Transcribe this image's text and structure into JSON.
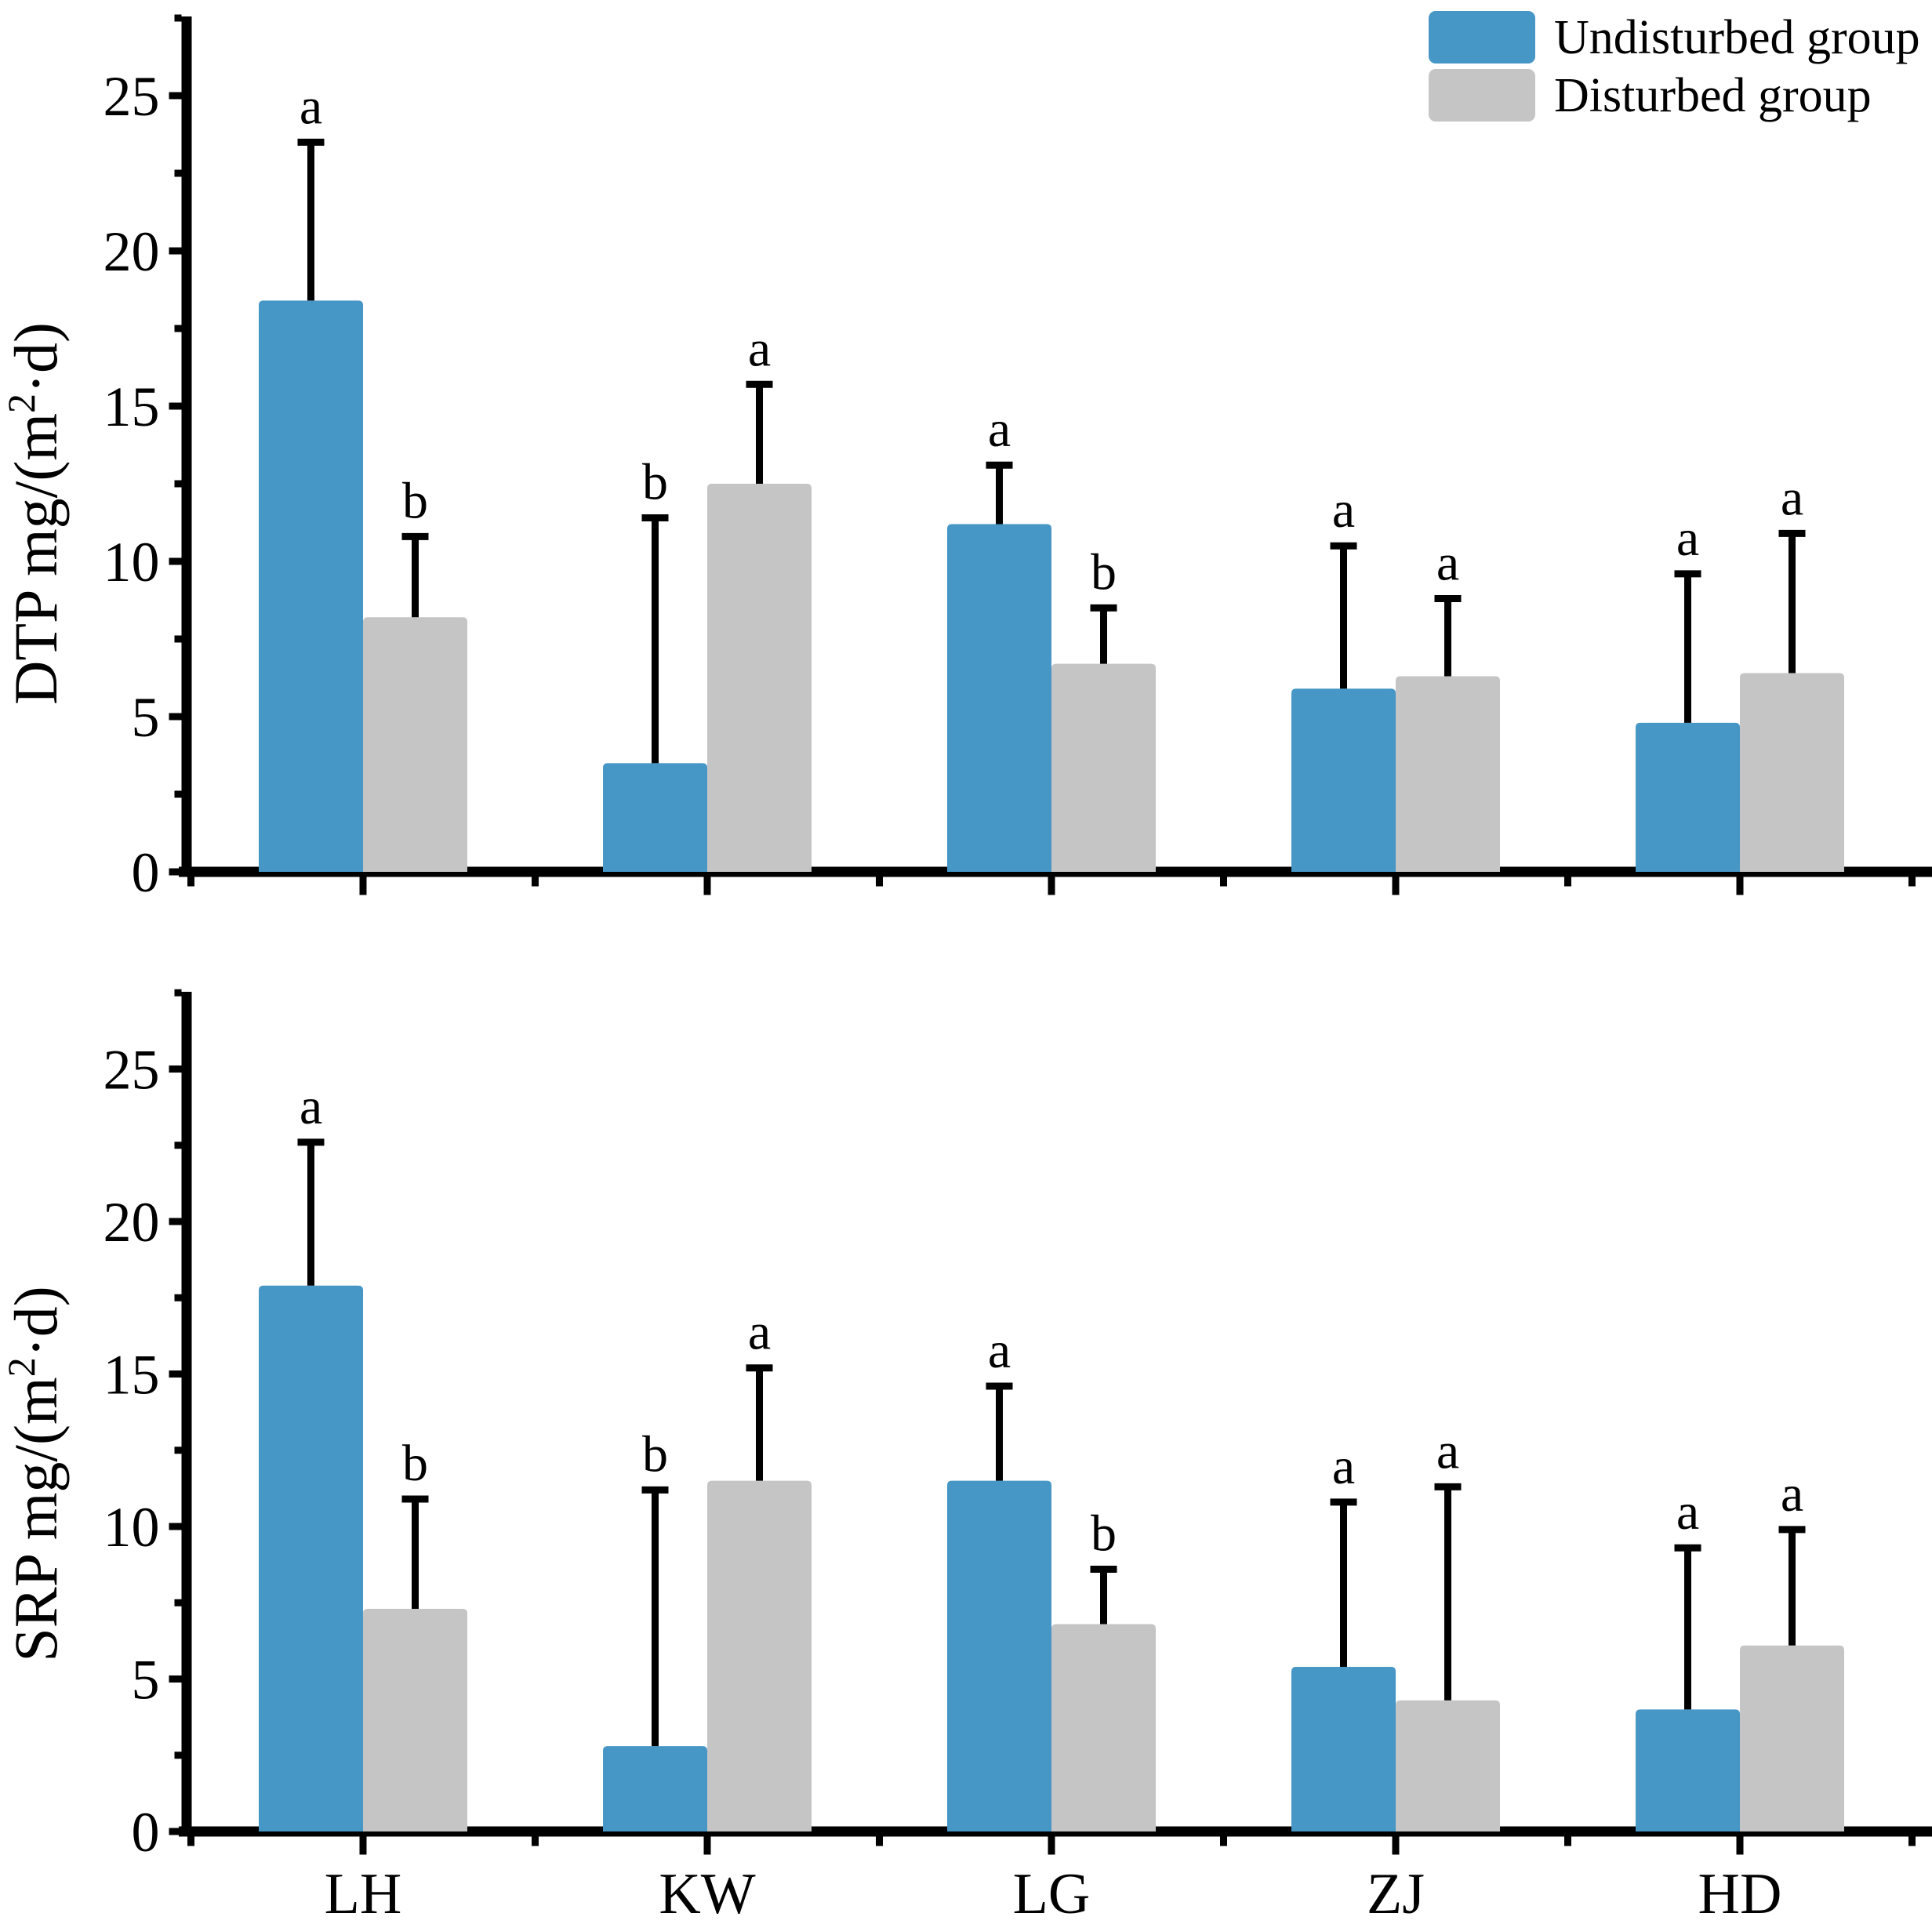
{
  "legend": {
    "items": [
      {
        "label": "Undisturbed group",
        "color": "#4696C6"
      },
      {
        "label": "Disturbed group",
        "color": "#C5C5C5"
      }
    ]
  },
  "chart_data": [
    {
      "type": "bar",
      "panel_id": "DTP",
      "ylabel": {
        "prefix": "DTP mg/(m",
        "superscript": "2",
        "suffix": "·d)"
      },
      "categories": [
        "LH",
        "KW",
        "LG",
        "ZJ",
        "HD"
      ],
      "series": [
        {
          "name": "Undisturbed group",
          "color": "#4696C6",
          "values": [
            18.4,
            3.5,
            11.2,
            5.9,
            4.8
          ],
          "errors_plus": [
            5.1,
            7.9,
            1.9,
            4.6,
            4.8
          ],
          "sig_letters": [
            "a",
            "b",
            "a",
            "a",
            "a"
          ]
        },
        {
          "name": "Disturbed group",
          "color": "#C5C5C5",
          "values": [
            8.2,
            12.5,
            6.7,
            6.3,
            6.4
          ],
          "errors_plus": [
            2.6,
            3.2,
            1.8,
            2.5,
            4.5
          ],
          "sig_letters": [
            "b",
            "a",
            "b",
            "a",
            "a"
          ]
        }
      ],
      "yticks": [
        0,
        5,
        10,
        15,
        20,
        25
      ],
      "ylim": [
        0,
        27.5
      ],
      "grid": false,
      "legend_position": "top-right",
      "show_category_labels": false
    },
    {
      "type": "bar",
      "panel_id": "SRP",
      "ylabel": {
        "prefix": "SRP mg/(m",
        "superscript": "2",
        "suffix": "·d)"
      },
      "categories": [
        "LH",
        "KW",
        "LG",
        "ZJ",
        "HD"
      ],
      "series": [
        {
          "name": "Undisturbed group",
          "color": "#4696C6",
          "values": [
            17.9,
            2.8,
            11.5,
            5.4,
            4.0
          ],
          "errors_plus": [
            4.7,
            8.4,
            3.1,
            5.4,
            5.3
          ],
          "sig_letters": [
            "a",
            "b",
            "a",
            "a",
            "a"
          ]
        },
        {
          "name": "Disturbed group",
          "color": "#C5C5C5",
          "values": [
            7.3,
            11.5,
            6.8,
            4.3,
            6.1
          ],
          "errors_plus": [
            3.6,
            3.7,
            1.8,
            7.0,
            3.8
          ],
          "sig_letters": [
            "b",
            "a",
            "b",
            "a",
            "a"
          ]
        }
      ],
      "yticks": [
        0,
        5,
        10,
        15,
        20,
        25
      ],
      "ylim": [
        0,
        27.5
      ],
      "grid": false,
      "show_category_labels": true
    }
  ]
}
